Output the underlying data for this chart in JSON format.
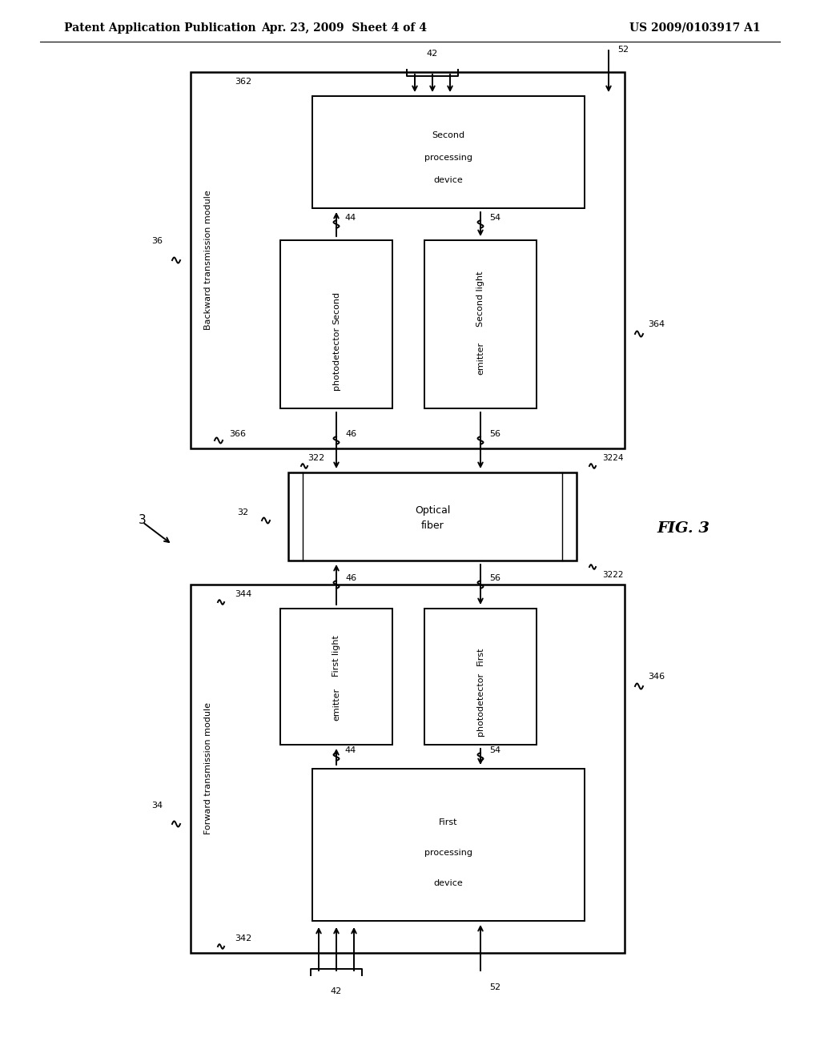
{
  "title_left": "Patent Application Publication",
  "title_mid": "Apr. 23, 2009  Sheet 4 of 4",
  "title_right": "US 2009/0103917 A1",
  "fig_label": "FIG. 3",
  "bg_color": "#ffffff",
  "line_color": "#000000",
  "font_size_header": 10,
  "font_size_label": 8,
  "font_size_box": 8,
  "font_size_fig": 13
}
